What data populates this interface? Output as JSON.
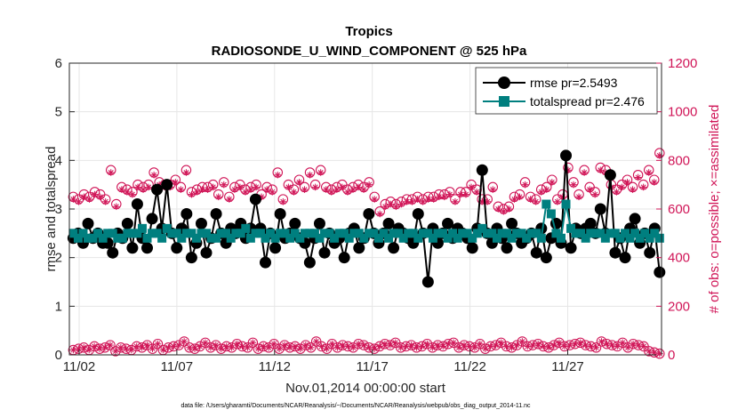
{
  "chart_data": {
    "type": "line",
    "title": "Tropics",
    "subtitle": "RADIOSONDE_U_WIND_COMPONENT @ 525 hPa",
    "xlabel": "Nov.01,2014 00:00:00 start",
    "ylabel": "rmse and totalspread",
    "y2label": "# of obs: o=possible; ×=assimilated",
    "footnote": "data file: /Users/gharamti/Documents/NCAR/Reanalysis/~/Documents/NCAR/Reanalysis/webpub/obs_diag_output_2014-11.nc",
    "xlim": [
      0.5,
      30.8
    ],
    "ylim": [
      0,
      6
    ],
    "y2lim": [
      0,
      1200
    ],
    "xticks": [
      1,
      6,
      11,
      16,
      21,
      26
    ],
    "xtick_labels": [
      "11/02",
      "11/07",
      "11/12",
      "11/17",
      "11/22",
      "11/27"
    ],
    "yticks": [
      "0",
      "1",
      "2",
      "3",
      "4",
      "5",
      "6"
    ],
    "y2ticks": [
      "0",
      "200",
      "400",
      "600",
      "800",
      "1000",
      "1200"
    ],
    "legend_position": "top-right",
    "series": [
      {
        "name": "rmse",
        "legend": "rmse pr=2.5493",
        "color": "#000000",
        "marker": "circle",
        "axis": "left",
        "values": [
          2.4,
          2.5,
          2.3,
          2.7,
          2.4,
          2.5,
          2.3,
          2.3,
          2.1,
          2.5,
          2.4,
          2.7,
          2.2,
          3.1,
          2.4,
          2.2,
          2.8,
          3.4,
          2.6,
          3.5,
          2.5,
          2.2,
          2.6,
          2.9,
          2.0,
          2.3,
          2.7,
          2.1,
          2.4,
          2.9,
          2.5,
          2.3,
          2.6,
          2.5,
          2.7,
          2.4,
          2.6,
          3.2,
          2.6,
          1.9,
          2.5,
          2.2,
          2.9,
          2.4,
          2.5,
          2.7,
          2.4,
          2.3,
          1.9,
          2.4,
          2.7,
          2.1,
          2.5,
          2.3,
          2.4,
          2.0,
          2.5,
          2.6,
          2.2,
          2.4,
          2.9,
          2.5,
          2.3,
          2.5,
          2.7,
          2.2,
          2.6,
          2.5,
          2.4,
          2.3,
          2.9,
          2.5,
          1.5,
          2.6,
          2.3,
          2.5,
          2.7,
          2.4,
          2.6,
          2.5,
          2.4,
          2.2,
          2.6,
          3.8,
          2.5,
          2.3,
          2.6,
          2.4,
          2.2,
          2.7,
          2.5,
          2.3,
          2.4,
          2.5,
          2.1,
          2.6,
          2.0,
          2.4,
          2.7,
          2.3,
          4.1,
          2.2,
          2.6,
          2.5,
          2.6,
          2.7,
          2.5,
          3.0,
          2.5,
          3.7,
          2.1,
          2.4,
          2.0,
          2.6,
          2.8,
          2.3,
          2.5,
          2.1,
          2.6,
          1.7
        ]
      },
      {
        "name": "totalspread",
        "legend": "totalspread pr=2.476",
        "color": "#007f7f",
        "marker": "square",
        "axis": "left",
        "values": [
          2.5,
          2.4,
          2.5,
          2.4,
          2.4,
          2.5,
          2.4,
          2.5,
          2.5,
          2.4,
          2.4,
          2.5,
          2.5,
          2.5,
          2.6,
          2.4,
          2.5,
          2.5,
          2.4,
          2.6,
          2.5,
          2.5,
          2.4,
          2.5,
          2.5,
          2.4,
          2.5,
          2.5,
          2.4,
          2.4,
          2.5,
          2.5,
          2.4,
          2.5,
          2.5,
          2.6,
          2.4,
          2.5,
          2.5,
          2.4,
          2.5,
          2.4,
          2.5,
          2.5,
          2.4,
          2.5,
          2.4,
          2.5,
          2.5,
          2.5,
          2.4,
          2.5,
          2.5,
          2.4,
          2.5,
          2.5,
          2.4,
          2.5,
          2.5,
          2.4,
          2.5,
          2.5,
          2.4,
          2.5,
          2.4,
          2.5,
          2.5,
          2.4,
          2.5,
          2.5,
          2.4,
          2.5,
          2.5,
          2.4,
          2.5,
          2.5,
          2.4,
          2.5,
          2.4,
          2.5,
          2.5,
          2.4,
          2.5,
          2.6,
          2.5,
          2.5,
          2.4,
          2.5,
          2.5,
          2.4,
          2.5,
          2.5,
          2.4,
          2.5,
          2.5,
          2.4,
          3.1,
          2.9,
          2.5,
          2.4,
          3.1,
          2.6,
          2.5,
          2.5,
          2.4,
          2.5,
          2.5,
          2.5,
          2.4,
          2.5,
          2.5,
          2.4,
          2.5,
          2.4,
          2.5,
          2.4,
          2.5,
          2.4,
          2.5,
          2.4
        ]
      },
      {
        "name": "obs possible",
        "color": "#d01557",
        "marker": "circle-open",
        "axis": "right",
        "values": [
          650,
          640,
          660,
          650,
          670,
          660,
          640,
          760,
          620,
          690,
          680,
          670,
          700,
          690,
          700,
          750,
          710,
          700,
          700,
          720,
          690,
          760,
          670,
          680,
          690,
          690,
          700,
          660,
          710,
          650,
          690,
          700,
          680,
          690,
          700,
          660,
          690,
          680,
          750,
          640,
          700,
          680,
          720,
          690,
          750,
          700,
          760,
          690,
          680,
          690,
          700,
          680,
          690,
          700,
          690,
          710,
          650,
          590,
          620,
          630,
          620,
          630,
          640,
          640,
          650,
          640,
          650,
          650,
          660,
          660,
          670,
          640,
          670,
          670,
          700,
          680,
          640,
          640,
          690,
          610,
          600,
          610,
          650,
          660,
          710,
          650,
          640,
          680,
          690,
          720,
          640,
          660,
          770,
          710,
          660,
          760,
          690,
          670,
          770,
          760,
          700,
          680,
          700,
          720,
          690,
          740,
          700,
          760,
          720,
          830
        ]
      },
      {
        "name": "obs assimilated",
        "color": "#d01557",
        "marker": "asterisk",
        "axis": "right",
        "values": [
          640,
          630,
          650,
          640,
          660,
          650,
          630,
          750,
          610,
          680,
          670,
          660,
          690,
          680,
          690,
          740,
          700,
          690,
          690,
          710,
          680,
          750,
          660,
          670,
          680,
          680,
          690,
          650,
          700,
          640,
          680,
          690,
          670,
          680,
          690,
          650,
          680,
          670,
          740,
          630,
          690,
          670,
          710,
          680,
          740,
          690,
          750,
          680,
          670,
          680,
          690,
          670,
          680,
          690,
          680,
          700,
          640,
          580,
          610,
          620,
          610,
          620,
          630,
          630,
          640,
          630,
          640,
          640,
          650,
          650,
          660,
          630,
          660,
          660,
          690,
          670,
          630,
          630,
          680,
          600,
          590,
          600,
          640,
          650,
          700,
          640,
          630,
          670,
          680,
          710,
          630,
          650,
          760,
          700,
          650,
          750,
          680,
          660,
          760,
          750,
          690,
          670,
          690,
          710,
          680,
          730,
          690,
          750,
          710,
          820
        ]
      },
      {
        "name": "obs possible (bottom)",
        "color": "#d01557",
        "marker": "circle-open",
        "axis": "right",
        "values": [
          20,
          25,
          30,
          20,
          35,
          25,
          30,
          40,
          15,
          30,
          25,
          20,
          35,
          30,
          40,
          25,
          45,
          20,
          30,
          35,
          40,
          55,
          30,
          25,
          35,
          50,
          30,
          40,
          25,
          35,
          30,
          45,
          35,
          30,
          50,
          25,
          35,
          30,
          45,
          25,
          40,
          30,
          35,
          25,
          40,
          30,
          55,
          35,
          25,
          45,
          30,
          40,
          35,
          30,
          45,
          40,
          30,
          25,
          35,
          45,
          40,
          50,
          30,
          35,
          40,
          30,
          35,
          45,
          30,
          40,
          35,
          45,
          50,
          30,
          40,
          35,
          30,
          45,
          25,
          35,
          40,
          50,
          35,
          30,
          40,
          55,
          35,
          40,
          45,
          35,
          30,
          40,
          50,
          35,
          40,
          45,
          50,
          40,
          35,
          30,
          55,
          45,
          40,
          35,
          50,
          30,
          45,
          40,
          35,
          15,
          10,
          5
        ]
      }
    ]
  }
}
